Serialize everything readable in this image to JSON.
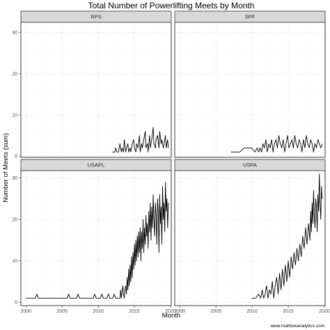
{
  "chart_data": {
    "type": "line",
    "title": "Total Number of Powerlifting Meets by Month",
    "xlabel": "Month",
    "ylabel": "Number of Meets (sum)",
    "xlim": [
      1999.3,
      2020.1
    ],
    "x_ticks": [
      2000,
      2005,
      2010,
      2015,
      2020
    ],
    "y_ticks": [
      0,
      10,
      20,
      30
    ],
    "rows": [
      {
        "ylim": [
          -0.3,
          32.5
        ]
      },
      {
        "ylim": [
          -0.8,
          31.8
        ]
      }
    ],
    "grid": true,
    "legend": "none",
    "panels": [
      {
        "name": "RPS",
        "row": 0,
        "col": 0,
        "x": [
          2011.9,
          2012.3,
          2012.4,
          2012.6,
          2012.8,
          2013,
          2013.2,
          2013.3,
          2013.5,
          2013.6,
          2013.8,
          2013.9,
          2014.1,
          2014.2,
          2014.4,
          2014.5,
          2014.7,
          2014.9,
          2015,
          2015.2,
          2015.3,
          2015.5,
          2015.7,
          2015.8,
          2016,
          2016.1,
          2016.3,
          2016.5,
          2016.6,
          2016.8,
          2016.9,
          2017.1,
          2017.2,
          2017.4,
          2017.6,
          2017.7,
          2017.9,
          2018,
          2018.2,
          2018.4,
          2018.5,
          2018.7,
          2018.8,
          2019,
          2019.1,
          2019.3,
          2019.4,
          2019.6,
          2019.7
        ],
        "y": [
          1,
          1,
          2,
          1,
          1,
          3,
          1,
          2,
          1,
          4,
          1,
          2,
          3,
          1,
          2,
          1,
          3,
          4,
          2,
          1,
          3,
          2,
          5,
          1,
          3,
          2,
          4,
          6,
          2,
          3,
          1,
          5,
          2,
          4,
          7,
          3,
          2,
          4,
          5,
          2,
          6,
          3,
          4,
          2,
          3,
          5,
          2,
          4,
          2
        ]
      },
      {
        "name": "SPF",
        "row": 0,
        "col": 1,
        "x": [
          2007.1,
          2008.3,
          2008.6,
          2008.9,
          2009.2,
          2009.9,
          2010.4,
          2010.7,
          2010.9,
          2011.1,
          2011.3,
          2011.5,
          2011.7,
          2011.9,
          2012.1,
          2012.3,
          2012.5,
          2012.7,
          2012.9,
          2013.1,
          2013.3,
          2013.5,
          2013.7,
          2013.9,
          2014.1,
          2014.3,
          2014.5,
          2014.7,
          2014.9,
          2015.1,
          2015.3,
          2015.5,
          2015.7,
          2015.9,
          2016.1,
          2016.3,
          2016.5,
          2016.7,
          2016.9,
          2017.1,
          2017.3,
          2017.5,
          2017.7,
          2017.9,
          2018.1,
          2018.3,
          2018.5,
          2018.7,
          2018.9,
          2019.1,
          2019.3,
          2019.5,
          2019.7
        ],
        "y": [
          1,
          1,
          1.5,
          2,
          2,
          2,
          1,
          2,
          1,
          2,
          1,
          3,
          2,
          4,
          1,
          3,
          2,
          4,
          1,
          3,
          4,
          2,
          5,
          3,
          2,
          4,
          1,
          3,
          5,
          2,
          3,
          4,
          2,
          5,
          3,
          2,
          4,
          3,
          1,
          4,
          2,
          5,
          3,
          2,
          4,
          3,
          1,
          3,
          2,
          4,
          3,
          2,
          3
        ]
      },
      {
        "name": "USAPL",
        "row": 1,
        "col": 0,
        "x": [
          2000,
          2001.3,
          2001.5,
          2001.7,
          2005.7,
          2005.9,
          2006.1,
          2007,
          2007.2,
          2007.4,
          2009.3,
          2009.5,
          2009.7,
          2010.3,
          2010.5,
          2010.7,
          2011.2,
          2011.4,
          2011.6,
          2012,
          2012.2,
          2012.4,
          2013,
          2013.1,
          2013.2,
          2013.4,
          2013.5,
          2013.6,
          2013.7,
          2013.8,
          2013.9,
          2014,
          2014.1,
          2014.2,
          2014.3,
          2014.4,
          2014.5,
          2014.6,
          2014.7,
          2014.8,
          2014.9,
          2015,
          2015.1,
          2015.2,
          2015.3,
          2015.4,
          2015.5,
          2015.6,
          2015.7,
          2015.8,
          2015.9,
          2016,
          2016.1,
          2016.2,
          2016.3,
          2016.4,
          2016.5,
          2016.6,
          2016.7,
          2016.8,
          2016.9,
          2017,
          2017.1,
          2017.2,
          2017.3,
          2017.4,
          2017.5,
          2017.6,
          2017.7,
          2017.8,
          2017.9,
          2018,
          2018.1,
          2018.2,
          2018.3,
          2018.4,
          2018.5,
          2018.6,
          2018.7,
          2018.8,
          2018.9,
          2019,
          2019.1,
          2019.2,
          2019.3,
          2019.4,
          2019.5,
          2019.6,
          2019.7
        ],
        "y": [
          1,
          1,
          2,
          1,
          1,
          2,
          1,
          1,
          2,
          1,
          1,
          2,
          1,
          1,
          2,
          1,
          1,
          2,
          1,
          1,
          2,
          1,
          1,
          3,
          1,
          4,
          2,
          1,
          3,
          4,
          2,
          6,
          3,
          8,
          4,
          9,
          5,
          11,
          6,
          12,
          8,
          14,
          9,
          15,
          10,
          16,
          11,
          17,
          12,
          18,
          10,
          17,
          13,
          20,
          12,
          18,
          14,
          21,
          16,
          19,
          13,
          22,
          17,
          24,
          15,
          23,
          18,
          26,
          20,
          16,
          24,
          21,
          14,
          25,
          22,
          12,
          26,
          19,
          23,
          14,
          28,
          20,
          24,
          17,
          29,
          22,
          25,
          18,
          24
        ]
      },
      {
        "name": "USPA",
        "row": 1,
        "col": 1,
        "x": [
          2009.9,
          2010.5,
          2010.9,
          2011.2,
          2011.4,
          2011.6,
          2011.8,
          2012,
          2012.2,
          2012.4,
          2012.6,
          2012.8,
          2013,
          2013.2,
          2013.4,
          2013.6,
          2013.8,
          2014,
          2014.2,
          2014.4,
          2014.6,
          2014.8,
          2015,
          2015.2,
          2015.4,
          2015.6,
          2015.8,
          2016,
          2016.2,
          2016.4,
          2016.6,
          2016.8,
          2017,
          2017.2,
          2017.4,
          2017.6,
          2017.8,
          2018,
          2018.1,
          2018.2,
          2018.3,
          2018.4,
          2018.5,
          2018.6,
          2018.7,
          2018.8,
          2018.9,
          2019,
          2019.1,
          2019.2,
          2019.3,
          2019.4,
          2019.5,
          2019.6,
          2019.7
        ],
        "y": [
          1,
          1,
          2,
          1,
          3,
          1,
          2,
          4,
          1,
          3,
          2,
          5,
          1,
          4,
          6,
          2,
          7,
          3,
          8,
          4,
          9,
          5,
          10,
          6,
          11,
          8,
          12,
          9,
          13,
          10,
          14,
          11,
          16,
          13,
          18,
          14,
          19,
          15,
          22,
          17,
          24,
          19,
          27,
          21,
          18,
          25,
          23,
          17,
          26,
          22,
          31,
          24,
          20,
          28,
          25
        ]
      }
    ],
    "watermark": "www.mathewanalytics.com"
  }
}
